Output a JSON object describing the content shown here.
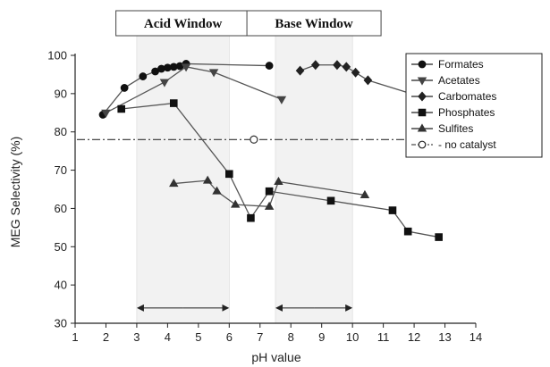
{
  "chart_data": {
    "type": "line",
    "xlabel": "pH value",
    "ylabel": "MEG Selectivity (%)",
    "xlim": [
      1,
      14
    ],
    "ylim": [
      30,
      100
    ],
    "x_ticks": [
      1,
      2,
      3,
      4,
      5,
      6,
      7,
      8,
      9,
      10,
      11,
      12,
      13,
      14
    ],
    "y_ticks": [
      30,
      40,
      50,
      60,
      70,
      80,
      90,
      100
    ],
    "grid": false,
    "legend_position": "top-right",
    "windows": [
      {
        "label": "Acid Window",
        "x_range": [
          3,
          6
        ],
        "color": "#f2f2f2"
      },
      {
        "label": "Base Window",
        "x_range": [
          7.5,
          10
        ],
        "color": "#f2f2f2"
      }
    ],
    "reference_line": {
      "name": "no catalyst",
      "y": 78,
      "marker_x": 6.8,
      "style": "dash-dot"
    },
    "series": [
      {
        "name": "Formates",
        "marker": "circle",
        "color": "#111111",
        "x": [
          1.9,
          2.6,
          3.2,
          3.6,
          3.8,
          4.0,
          4.2,
          4.4,
          4.6,
          7.3
        ],
        "y": [
          84.5,
          91.5,
          94.5,
          95.8,
          96.5,
          96.8,
          97.0,
          97.2,
          97.8,
          97.3
        ]
      },
      {
        "name": "Acetates",
        "marker": "triangle-down",
        "color": "#444444",
        "x": [
          2.0,
          3.9,
          4.6,
          5.5,
          7.7
        ],
        "y": [
          85.0,
          93.0,
          97.0,
          95.6,
          88.5
        ]
      },
      {
        "name": "Carbomates",
        "marker": "diamond",
        "color": "#222222",
        "x": [
          8.3,
          8.8,
          9.5,
          9.8,
          10.1,
          10.5,
          11.9
        ],
        "y": [
          96.0,
          97.5,
          97.5,
          97.0,
          95.5,
          93.5,
          90.0
        ]
      },
      {
        "name": "Phosphates",
        "marker": "square",
        "color": "#111111",
        "x": [
          2.5,
          4.2,
          6.0,
          6.7,
          7.3,
          9.3,
          11.3,
          11.8,
          12.8
        ],
        "y": [
          86.0,
          87.5,
          69.0,
          57.5,
          64.5,
          62.0,
          59.5,
          54.0,
          52.5
        ]
      },
      {
        "name": "Sulfites",
        "marker": "triangle-up",
        "color": "#333333",
        "x": [
          4.2,
          5.3,
          5.6,
          6.2,
          7.3,
          7.6,
          10.4
        ],
        "y": [
          66.5,
          67.3,
          64.5,
          61.0,
          60.5,
          67.0,
          63.5
        ]
      }
    ],
    "legend": [
      "Formates",
      "Acetates",
      "Carbomates",
      "Phosphates",
      "Sulfites",
      "no catalyst"
    ]
  }
}
